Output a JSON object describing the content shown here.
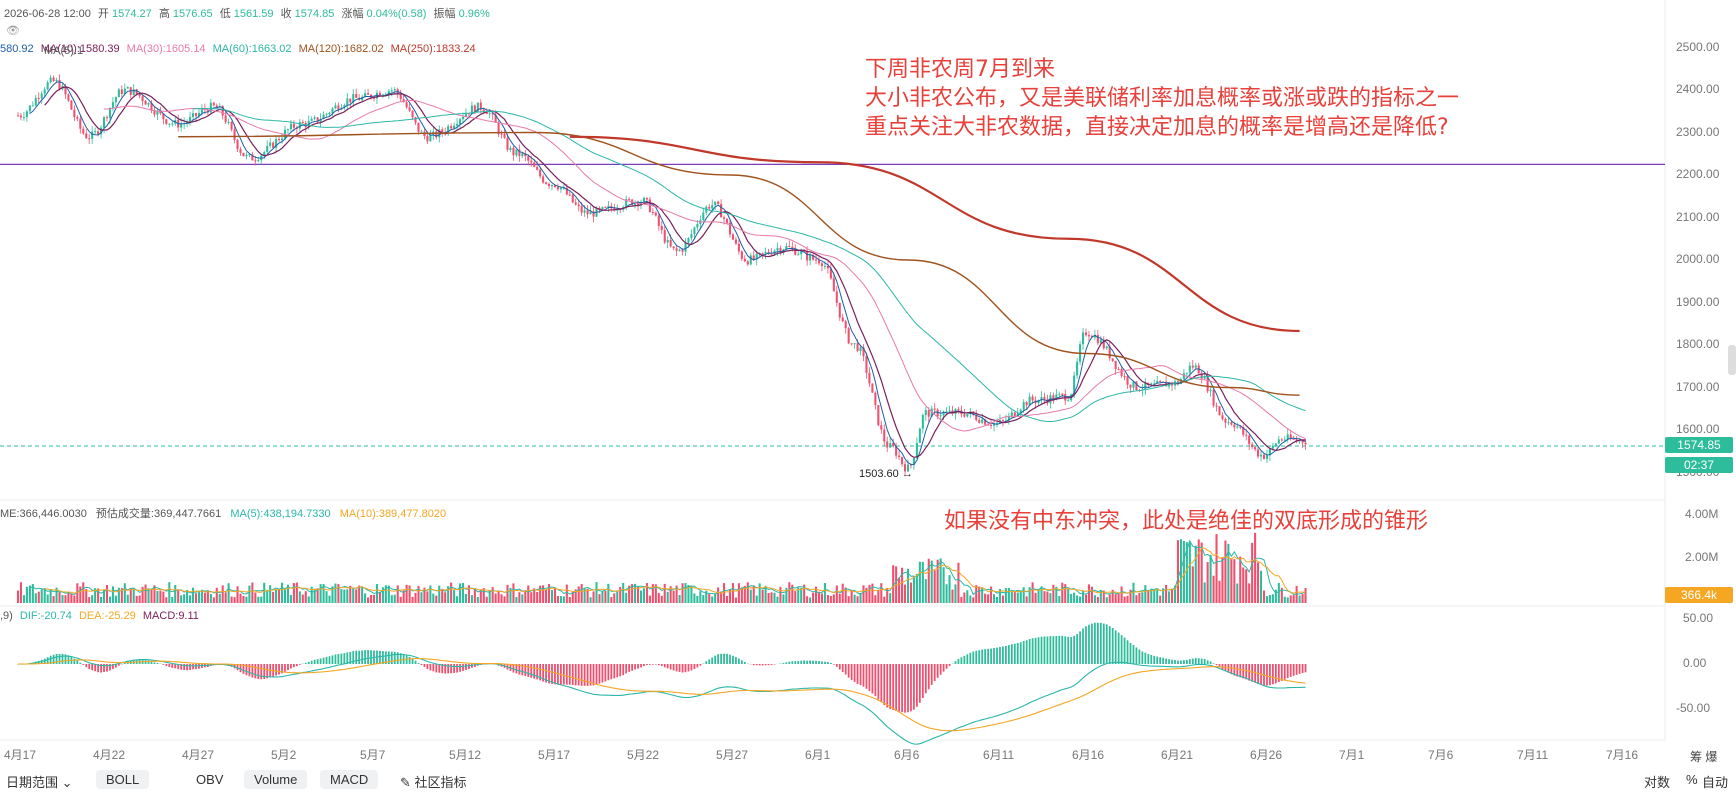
{
  "header": {
    "datetime": "2026-06-28 12:00",
    "open_label": "开",
    "open": "1574.27",
    "high_label": "高",
    "high": "1576.65",
    "low_label": "低",
    "low": "1561.59",
    "close_label": "收",
    "close": "1574.85",
    "change_label": "涨幅",
    "change": "0.04%(0.58)",
    "amp_label": "振幅",
    "amp": "0.96%"
  },
  "ma_legend": [
    {
      "text": "580.92",
      "color": "#1e5fa8"
    },
    {
      "text": "MA(10):1580.39",
      "color": "#7a1f5a"
    },
    {
      "text": "MA(30):1605.14",
      "color": "#e879a8"
    },
    {
      "text": "MA(60):1663.02",
      "color": "#2bb7a8"
    },
    {
      "text": "MA(120):1682.02",
      "color": "#a0521d"
    },
    {
      "text": "MA(250):1833.24",
      "color": "#c0392b"
    }
  ],
  "ma_overlap_text": "MA(5):1",
  "annotations": {
    "top": [
      "下周非农周7月到来",
      "大小非农公布，又是美联储利率加息概率或涨或跌的指标之一",
      "重点关注大非农数据，直接决定加息的概率是增高还是降低?"
    ],
    "bottom": "如果没有中东冲突，此处是绝佳的双底形成的锥形"
  },
  "low_marker": "1503.60 →",
  "price_tags": {
    "price": "1574.85",
    "countdown": "02:37",
    "volume": "366.4k"
  },
  "volume_legend": {
    "vol": "ME:366,446.0030",
    "est": "预估成交量:369,447.7661",
    "ma5": "MA(5):438,194.7330",
    "ma10": "MA(10):389,477.8020"
  },
  "macd_legend": {
    "prefix": ",9)",
    "dif": "DIF:-20.74",
    "dea": "DEA:-25.29",
    "macd": "MACD:9.11"
  },
  "colors": {
    "up": "#2ebd9c",
    "down": "#f0506e",
    "ma5": "#1e5fa8",
    "ma10": "#7a1f5a",
    "ma30": "#e879a8",
    "ma60": "#2bb7a8",
    "ma120": "#a0521d",
    "ma250": "#c0392b",
    "hline": "#7b3fb8",
    "accent": "#2ebd9c",
    "orange": "#f5a623"
  },
  "toolbar": {
    "date_range": "日期范围",
    "items": [
      "BOLL",
      "OBV",
      "Volume",
      "MACD"
    ],
    "community": "社区指标",
    "right": [
      "对数",
      "%",
      "自动"
    ],
    "corner": "筹  爆"
  },
  "chart_data": {
    "type": "candlestick",
    "title": "",
    "x_ticks": [
      "4月17",
      "4月22",
      "4月27",
      "5月2",
      "5月7",
      "5月12",
      "5月17",
      "5月22",
      "5月27",
      "6月1",
      "6月6",
      "6月11",
      "6月16",
      "6月21",
      "6月26",
      "7月1",
      "7月6",
      "7月11",
      "7月16"
    ],
    "y_ticks": [
      "2500.00",
      "2400.00",
      "2300.00",
      "2200.00",
      "2100.00",
      "2000.00",
      "1900.00",
      "1800.00",
      "1700.00",
      "1600.00",
      "1500.00"
    ],
    "ylim": [
      1480,
      2520
    ],
    "horizontal_line": 2225,
    "price_anchors": [
      [
        "4月17",
        2340
      ],
      [
        "4月19",
        2420
      ],
      [
        "4月21",
        2290
      ],
      [
        "4月23",
        2400
      ],
      [
        "4月26",
        2320
      ],
      [
        "4月28",
        2360
      ],
      [
        "4月30",
        2240
      ],
      [
        "5月3",
        2320
      ],
      [
        "5月6",
        2380
      ],
      [
        "5月8",
        2400
      ],
      [
        "5月10",
        2290
      ],
      [
        "5月13",
        2360
      ],
      [
        "5月15",
        2250
      ],
      [
        "5月17",
        2180
      ],
      [
        "5月19",
        2110
      ],
      [
        "5月22",
        2140
      ],
      [
        "5月24",
        2020
      ],
      [
        "5月26",
        2130
      ],
      [
        "5月28",
        2000
      ],
      [
        "5月30",
        2030
      ],
      [
        "6月1",
        2000
      ],
      [
        "6月3",
        1800
      ],
      [
        "6月5",
        1560
      ],
      [
        "6月6",
        1510
      ],
      [
        "6月7",
        1640
      ],
      [
        "6月9",
        1640
      ],
      [
        "6月11",
        1615
      ],
      [
        "6月13",
        1670
      ],
      [
        "6月15",
        1680
      ],
      [
        "6月16",
        1830
      ],
      [
        "6月19",
        1700
      ],
      [
        "6月21",
        1710
      ],
      [
        "6月22",
        1750
      ],
      [
        "6月24",
        1620
      ],
      [
        "6月26",
        1540
      ],
      [
        "6月27",
        1580
      ],
      [
        "6月28",
        1575
      ]
    ],
    "ma250_anchors": [
      [
        "5月18",
        2290
      ],
      [
        "6月1",
        2230
      ],
      [
        "6月15",
        2050
      ],
      [
        "6月28",
        1833
      ]
    ],
    "ma120_anchors": [
      [
        "4月26",
        2290
      ],
      [
        "5月16",
        2300
      ],
      [
        "5月27",
        2200
      ],
      [
        "6月6",
        2000
      ],
      [
        "6月16",
        1780
      ],
      [
        "6月24",
        1700
      ],
      [
        "6月28",
        1682
      ]
    ],
    "volume_yticks": [
      "4.00M",
      "2.00M"
    ],
    "volume_ylim": [
      0,
      4000000
    ],
    "macd_yticks": [
      "50.00",
      "0.00",
      "-50.00"
    ],
    "macd_ylim": [
      -80,
      80
    ],
    "low_label_value": 1503.6
  }
}
